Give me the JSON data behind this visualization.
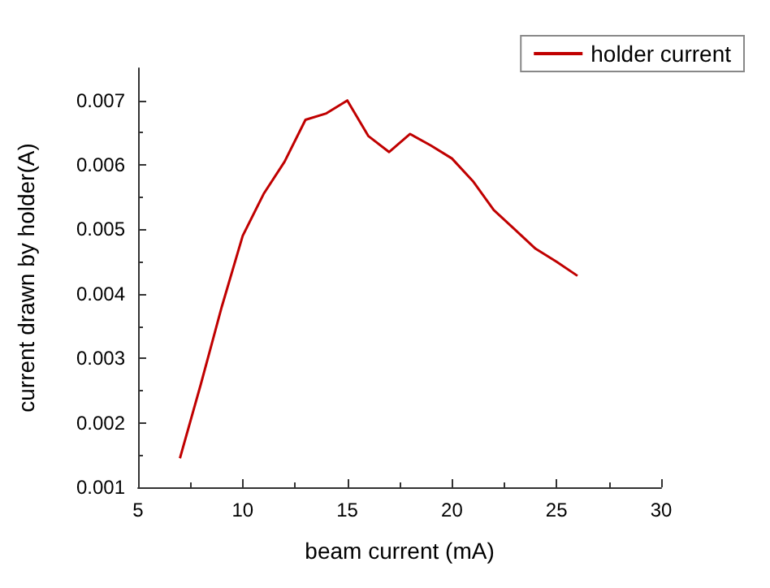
{
  "chart_data": {
    "type": "line",
    "xlabel": "beam current (mA)",
    "ylabel": "current drawn by holder(A)",
    "x": [
      7,
      8,
      9,
      10,
      11,
      12,
      13,
      14,
      15,
      16,
      17,
      18,
      19,
      20,
      21,
      22,
      23,
      24,
      25,
      26
    ],
    "series": [
      {
        "name": "holder current",
        "color": "#c00000",
        "values": [
          0.00145,
          0.0026,
          0.0038,
          0.0049,
          0.00555,
          0.00605,
          0.0067,
          0.0068,
          0.007,
          0.00645,
          0.0062,
          0.00648,
          0.0063,
          0.0061,
          0.00575,
          0.0053,
          0.005,
          0.0047,
          0.0045,
          0.00428
        ]
      }
    ],
    "xlim": [
      5,
      30
    ],
    "xticks": [
      5,
      10,
      15,
      20,
      25,
      30
    ],
    "ylim": [
      0.001,
      0.0075
    ],
    "yticks": [
      0.001,
      0.002,
      0.003,
      0.004,
      0.005,
      0.006,
      0.007
    ],
    "grid": false,
    "legend": "top right",
    "marker": "none",
    "line_style": "solid"
  }
}
